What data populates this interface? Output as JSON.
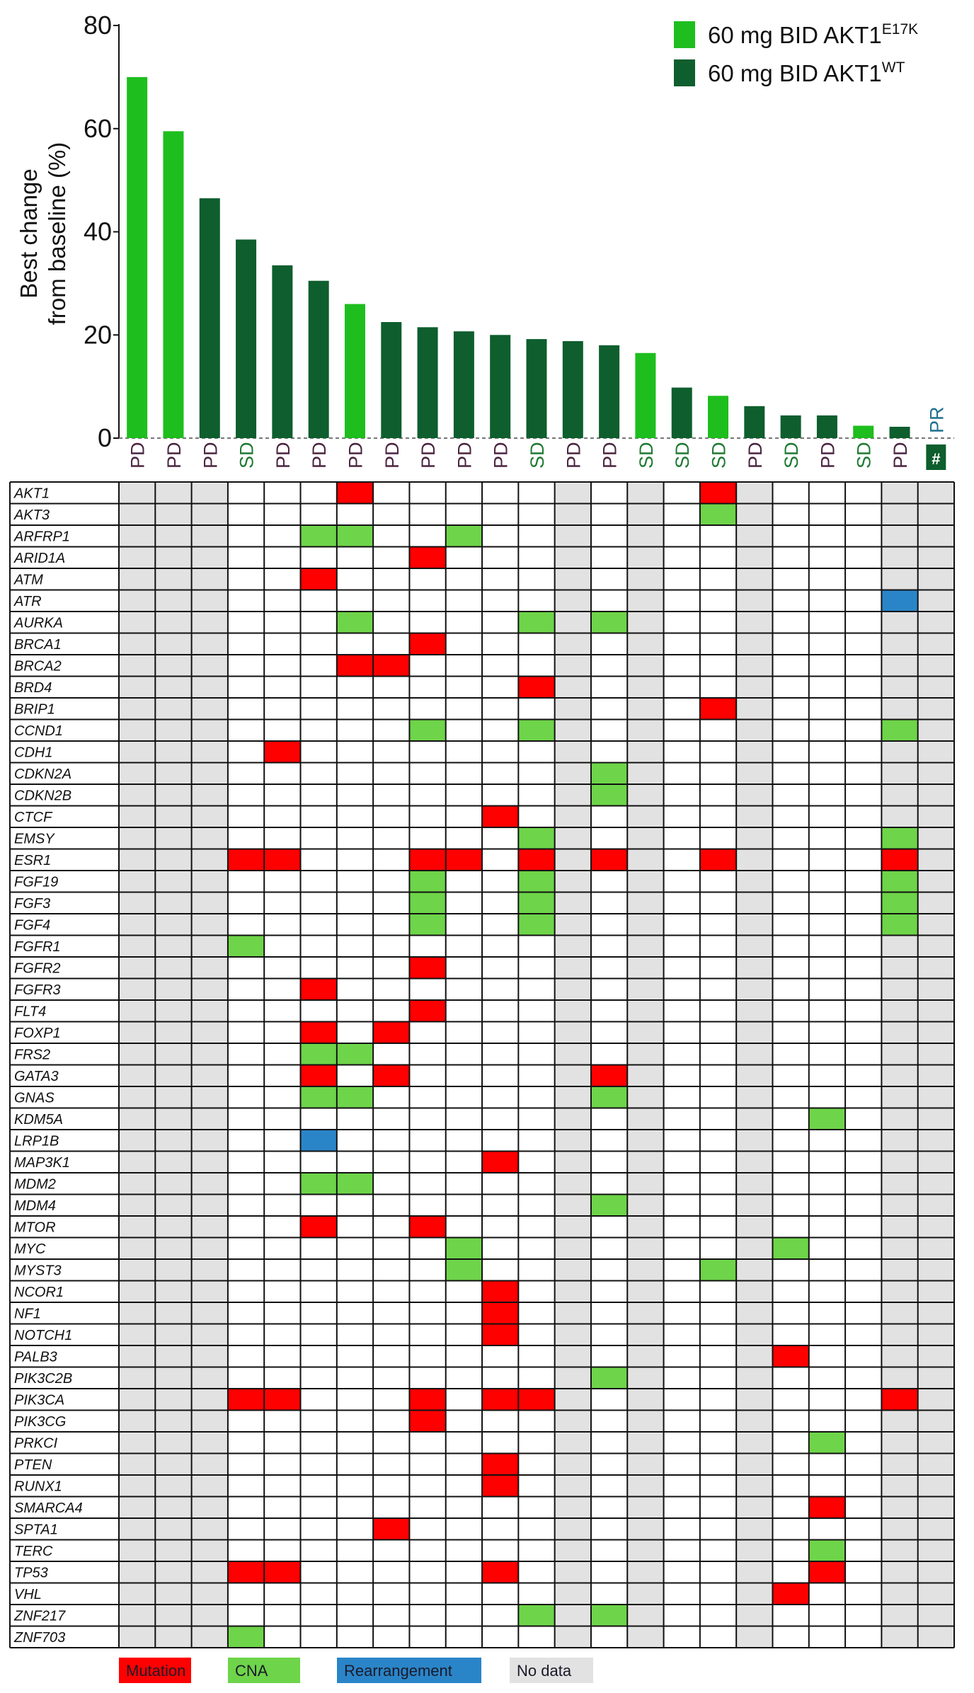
{
  "chart_data": {
    "type": "bar",
    "ylabel": "Best change\nfrom baseline (%)",
    "ylim": [
      0,
      80
    ],
    "yticks": [
      0,
      20,
      40,
      60,
      80
    ],
    "legend": {
      "position": "top-right",
      "entries": [
        {
          "key": "E17K",
          "base": "60 mg BID AKT1",
          "sup": "E17K",
          "color": "#1ebe1e"
        },
        {
          "key": "WT",
          "base": "60 mg BID AKT1",
          "sup": "WT",
          "color": "#0e5e2e"
        }
      ]
    },
    "response_colors": {
      "PD": "#4a2540",
      "SD": "#1e7a32",
      "PR": "#1e7090"
    },
    "patients": [
      {
        "value": 70,
        "group": "E17K",
        "response": "PD"
      },
      {
        "value": 59.5,
        "group": "E17K",
        "response": "PD"
      },
      {
        "value": 46.5,
        "group": "WT",
        "response": "PD"
      },
      {
        "value": 38.5,
        "group": "WT",
        "response": "SD"
      },
      {
        "value": 33.5,
        "group": "WT",
        "response": "PD"
      },
      {
        "value": 30.5,
        "group": "WT",
        "response": "PD"
      },
      {
        "value": 26,
        "group": "E17K",
        "response": "PD"
      },
      {
        "value": 22.5,
        "group": "WT",
        "response": "PD"
      },
      {
        "value": 21.5,
        "group": "WT",
        "response": "PD"
      },
      {
        "value": 20.7,
        "group": "WT",
        "response": "PD"
      },
      {
        "value": 20,
        "group": "WT",
        "response": "PD"
      },
      {
        "value": 19.2,
        "group": "WT",
        "response": "SD"
      },
      {
        "value": 18.8,
        "group": "WT",
        "response": "PD"
      },
      {
        "value": 18,
        "group": "WT",
        "response": "PD"
      },
      {
        "value": 16.5,
        "group": "E17K",
        "response": "SD"
      },
      {
        "value": 9.8,
        "group": "WT",
        "response": "SD"
      },
      {
        "value": 8.2,
        "group": "E17K",
        "response": "SD"
      },
      {
        "value": 6.2,
        "group": "WT",
        "response": "PD"
      },
      {
        "value": 4.4,
        "group": "WT",
        "response": "SD"
      },
      {
        "value": 4.4,
        "group": "WT",
        "response": "PD"
      },
      {
        "value": 2.4,
        "group": "E17K",
        "response": "SD"
      },
      {
        "value": 2.2,
        "group": "WT",
        "response": "PD"
      },
      {
        "value": 0,
        "group": "WT",
        "response": "PR",
        "marker": "#"
      }
    ],
    "oncoprint": {
      "genes": [
        "AKT1",
        "AKT3",
        "ARFRP1",
        "ARID1A",
        "ATM",
        "ATR",
        "AURKA",
        "BRCA1",
        "BRCA2",
        "BRD4",
        "BRIP1",
        "CCND1",
        "CDH1",
        "CDKN2A",
        "CDKN2B",
        "CTCF",
        "EMSY",
        "ESR1",
        "FGF19",
        "FGF3",
        "FGF4",
        "FGFR1",
        "FGFR2",
        "FGFR3",
        "FLT4",
        "FOXP1",
        "FRS2",
        "GATA3",
        "GNAS",
        "KDM5A",
        "LRP1B",
        "MAP3K1",
        "MDM2",
        "MDM4",
        "MTOR",
        "MYC",
        "MYST3",
        "NCOR1",
        "NF1",
        "NOTCH1",
        "PALB3",
        "PIK3C2B",
        "PIK3CA",
        "PIK3CG",
        "PRKCI",
        "PTEN",
        "RUNX1",
        "SMARCA4",
        "SPTA1",
        "TERC",
        "TP53",
        "VHL",
        "ZNF217",
        "ZNF703"
      ],
      "no_data_columns": [
        0,
        1,
        2,
        12,
        14,
        17,
        21,
        22
      ],
      "alteration_colors": {
        "M": "#ff0000",
        "C": "#6ed449",
        "R": "#2a85c8"
      },
      "alterations": [
        {
          "gene": "AKT1",
          "col": 6,
          "type": "M"
        },
        {
          "gene": "AKT1",
          "col": 16,
          "type": "M"
        },
        {
          "gene": "AKT3",
          "col": 16,
          "type": "C"
        },
        {
          "gene": "ARFRP1",
          "col": 5,
          "type": "C"
        },
        {
          "gene": "ARFRP1",
          "col": 6,
          "type": "C"
        },
        {
          "gene": "ARFRP1",
          "col": 9,
          "type": "C"
        },
        {
          "gene": "ARID1A",
          "col": 8,
          "type": "M"
        },
        {
          "gene": "ATM",
          "col": 5,
          "type": "M"
        },
        {
          "gene": "ATR",
          "col": 21,
          "type": "R"
        },
        {
          "gene": "AURKA",
          "col": 6,
          "type": "C"
        },
        {
          "gene": "AURKA",
          "col": 11,
          "type": "C"
        },
        {
          "gene": "AURKA",
          "col": 13,
          "type": "C"
        },
        {
          "gene": "BRCA1",
          "col": 8,
          "type": "M"
        },
        {
          "gene": "BRCA2",
          "col": 6,
          "type": "M"
        },
        {
          "gene": "BRCA2",
          "col": 7,
          "type": "M"
        },
        {
          "gene": "BRD4",
          "col": 11,
          "type": "M"
        },
        {
          "gene": "BRIP1",
          "col": 16,
          "type": "M"
        },
        {
          "gene": "CCND1",
          "col": 8,
          "type": "C"
        },
        {
          "gene": "CCND1",
          "col": 11,
          "type": "C"
        },
        {
          "gene": "CCND1",
          "col": 21,
          "type": "C"
        },
        {
          "gene": "CDH1",
          "col": 4,
          "type": "M"
        },
        {
          "gene": "CDKN2A",
          "col": 13,
          "type": "C"
        },
        {
          "gene": "CDKN2B",
          "col": 13,
          "type": "C"
        },
        {
          "gene": "CTCF",
          "col": 10,
          "type": "M"
        },
        {
          "gene": "EMSY",
          "col": 11,
          "type": "C"
        },
        {
          "gene": "EMSY",
          "col": 21,
          "type": "C"
        },
        {
          "gene": "ESR1",
          "col": 3,
          "type": "M"
        },
        {
          "gene": "ESR1",
          "col": 4,
          "type": "M"
        },
        {
          "gene": "ESR1",
          "col": 8,
          "type": "M"
        },
        {
          "gene": "ESR1",
          "col": 9,
          "type": "M"
        },
        {
          "gene": "ESR1",
          "col": 11,
          "type": "M"
        },
        {
          "gene": "ESR1",
          "col": 13,
          "type": "M"
        },
        {
          "gene": "ESR1",
          "col": 16,
          "type": "M"
        },
        {
          "gene": "ESR1",
          "col": 21,
          "type": "M"
        },
        {
          "gene": "FGF19",
          "col": 8,
          "type": "C"
        },
        {
          "gene": "FGF19",
          "col": 11,
          "type": "C"
        },
        {
          "gene": "FGF19",
          "col": 21,
          "type": "C"
        },
        {
          "gene": "FGF3",
          "col": 8,
          "type": "C"
        },
        {
          "gene": "FGF3",
          "col": 11,
          "type": "C"
        },
        {
          "gene": "FGF3",
          "col": 21,
          "type": "C"
        },
        {
          "gene": "FGF4",
          "col": 8,
          "type": "C"
        },
        {
          "gene": "FGF4",
          "col": 11,
          "type": "C"
        },
        {
          "gene": "FGF4",
          "col": 21,
          "type": "C"
        },
        {
          "gene": "FGFR1",
          "col": 3,
          "type": "C"
        },
        {
          "gene": "FGFR2",
          "col": 8,
          "type": "M"
        },
        {
          "gene": "FGFR3",
          "col": 5,
          "type": "M"
        },
        {
          "gene": "FLT4",
          "col": 8,
          "type": "M"
        },
        {
          "gene": "FOXP1",
          "col": 5,
          "type": "M"
        },
        {
          "gene": "FOXP1",
          "col": 7,
          "type": "M"
        },
        {
          "gene": "FRS2",
          "col": 5,
          "type": "C"
        },
        {
          "gene": "FRS2",
          "col": 6,
          "type": "C"
        },
        {
          "gene": "GATA3",
          "col": 5,
          "type": "M"
        },
        {
          "gene": "GATA3",
          "col": 7,
          "type": "M"
        },
        {
          "gene": "GATA3",
          "col": 13,
          "type": "M"
        },
        {
          "gene": "GNAS",
          "col": 5,
          "type": "C"
        },
        {
          "gene": "GNAS",
          "col": 6,
          "type": "C"
        },
        {
          "gene": "GNAS",
          "col": 13,
          "type": "C"
        },
        {
          "gene": "KDM5A",
          "col": 19,
          "type": "C"
        },
        {
          "gene": "LRP1B",
          "col": 5,
          "type": "R"
        },
        {
          "gene": "MAP3K1",
          "col": 10,
          "type": "M"
        },
        {
          "gene": "MDM2",
          "col": 5,
          "type": "C"
        },
        {
          "gene": "MDM2",
          "col": 6,
          "type": "C"
        },
        {
          "gene": "MDM4",
          "col": 13,
          "type": "C"
        },
        {
          "gene": "MTOR",
          "col": 5,
          "type": "M"
        },
        {
          "gene": "MTOR",
          "col": 8,
          "type": "M"
        },
        {
          "gene": "MYC",
          "col": 9,
          "type": "C"
        },
        {
          "gene": "MYC",
          "col": 18,
          "type": "C"
        },
        {
          "gene": "MYST3",
          "col": 9,
          "type": "C"
        },
        {
          "gene": "MYST3",
          "col": 16,
          "type": "C"
        },
        {
          "gene": "NCOR1",
          "col": 10,
          "type": "M"
        },
        {
          "gene": "NF1",
          "col": 10,
          "type": "M"
        },
        {
          "gene": "NOTCH1",
          "col": 10,
          "type": "M"
        },
        {
          "gene": "PALB3",
          "col": 18,
          "type": "M"
        },
        {
          "gene": "PIK3C2B",
          "col": 13,
          "type": "C"
        },
        {
          "gene": "PIK3CA",
          "col": 3,
          "type": "M"
        },
        {
          "gene": "PIK3CA",
          "col": 4,
          "type": "M"
        },
        {
          "gene": "PIK3CA",
          "col": 8,
          "type": "M"
        },
        {
          "gene": "PIK3CA",
          "col": 10,
          "type": "M"
        },
        {
          "gene": "PIK3CA",
          "col": 11,
          "type": "M"
        },
        {
          "gene": "PIK3CA",
          "col": 21,
          "type": "M"
        },
        {
          "gene": "PIK3CG",
          "col": 8,
          "type": "M"
        },
        {
          "gene": "PRKCI",
          "col": 19,
          "type": "C"
        },
        {
          "gene": "PTEN",
          "col": 10,
          "type": "M"
        },
        {
          "gene": "RUNX1",
          "col": 10,
          "type": "M"
        },
        {
          "gene": "SMARCA4",
          "col": 19,
          "type": "M"
        },
        {
          "gene": "SPTA1",
          "col": 7,
          "type": "M"
        },
        {
          "gene": "TERC",
          "col": 19,
          "type": "C"
        },
        {
          "gene": "TP53",
          "col": 3,
          "type": "M"
        },
        {
          "gene": "TP53",
          "col": 4,
          "type": "M"
        },
        {
          "gene": "TP53",
          "col": 10,
          "type": "M"
        },
        {
          "gene": "TP53",
          "col": 19,
          "type": "M"
        },
        {
          "gene": "VHL",
          "col": 18,
          "type": "M"
        },
        {
          "gene": "ZNF217",
          "col": 11,
          "type": "C"
        },
        {
          "gene": "ZNF217",
          "col": 13,
          "type": "C"
        },
        {
          "gene": "ZNF703",
          "col": 3,
          "type": "C"
        }
      ]
    },
    "key": [
      {
        "label": "Mutation",
        "color": "#ff0000"
      },
      {
        "label": "CNA",
        "color": "#6ed449"
      },
      {
        "label": "Rearrangement",
        "color": "#2a85c8"
      },
      {
        "label": "No data",
        "color": "#e2e2e2"
      }
    ]
  }
}
